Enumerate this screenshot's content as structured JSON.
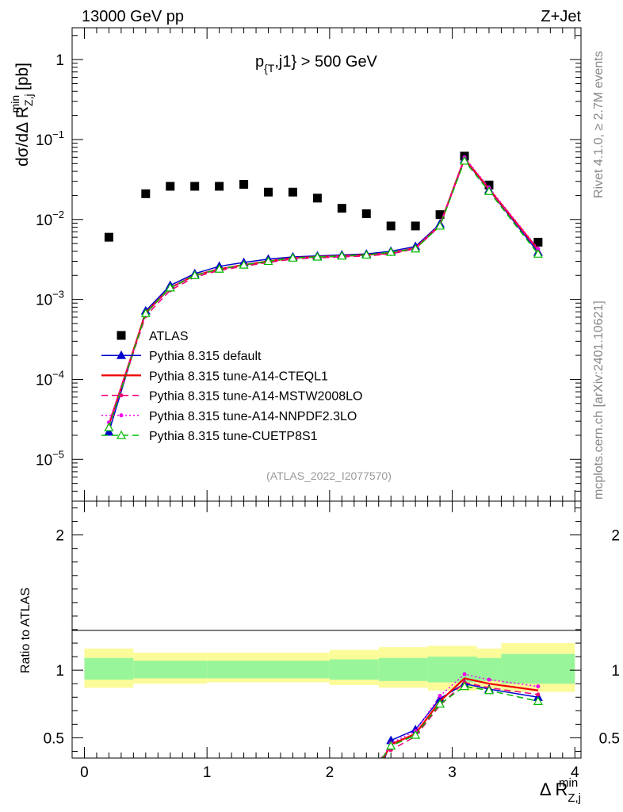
{
  "header": {
    "left": "13000 GeV pp",
    "right": "Z+Jet",
    "cut_label": "p_{T},j1} > 500 GeV",
    "cut_label_main": "p",
    "cut_label_sub": "{T",
    "cut_label_rest": ",j1} > 500 GeV",
    "analysis_id": "(ATLAS_2022_I2077570)"
  },
  "side": {
    "rivet": "Rivet 4.1.0, ≥ 2.7M events",
    "mcplots": "mcplots.cern.ch [arXiv:2401.10621]"
  },
  "colors": {
    "data": "#000000",
    "default": "#0000cc",
    "cteql1": "#ee0000",
    "mstw": "#ee0077",
    "nnpdf": "#ee00ee",
    "cuetp8s1": "#00bb00",
    "band_inner": "#99f599",
    "band_outer": "#fbfb9a"
  },
  "chart_data": [
    {
      "type": "scatter",
      "name": "main",
      "yscale": "log",
      "ylabel": "dσ/dΔ R_Z,j^min [pb]",
      "ylabel_parts": [
        "dσ/dΔ R",
        "Z,j",
        "min",
        " [pb]"
      ],
      "xlim": [
        -0.1,
        4.05
      ],
      "ylim": [
        3e-06,
        2.5
      ],
      "yticks": [
        {
          "v": 1,
          "base": "1",
          "exp": ""
        },
        {
          "v": 0.1,
          "base": "10",
          "exp": "−1"
        },
        {
          "v": 0.01,
          "base": "10",
          "exp": "−2"
        },
        {
          "v": 0.001,
          "base": "10",
          "exp": "−3"
        },
        {
          "v": 0.0001,
          "base": "10",
          "exp": "−4"
        },
        {
          "v": 1e-05,
          "base": "10",
          "exp": "−5"
        }
      ],
      "x": [
        0.2,
        0.5,
        0.7,
        0.9,
        1.1,
        1.3,
        1.5,
        1.7,
        1.9,
        2.1,
        2.3,
        2.5,
        2.7,
        2.9,
        3.1,
        3.3,
        3.7
      ],
      "series": [
        {
          "name": "ATLAS",
          "key": "data",
          "style": "data",
          "values": [
            0.006,
            0.021,
            0.026,
            0.026,
            0.026,
            0.0275,
            0.022,
            0.022,
            0.0185,
            0.0138,
            0.0118,
            0.0083,
            0.0083,
            0.0115,
            0.062,
            0.027,
            0.0052
          ]
        },
        {
          "name": "Pythia 8.315 default",
          "key": "default",
          "style": "solid",
          "marker": "tri-filled",
          "values": [
            2.2e-05,
            0.00072,
            0.0015,
            0.0021,
            0.0026,
            0.0029,
            0.0032,
            0.0034,
            0.0035,
            0.0036,
            0.0037,
            0.004,
            0.0046,
            0.0088,
            0.056,
            0.0235,
            0.0039
          ]
        },
        {
          "name": "Pythia 8.315 tune-A14-CTEQL1",
          "key": "cteql1",
          "style": "solid",
          "values": [
            2.7e-05,
            0.00068,
            0.0014,
            0.002,
            0.0024,
            0.0027,
            0.003,
            0.0033,
            0.0034,
            0.0035,
            0.0036,
            0.0038,
            0.0044,
            0.0085,
            0.058,
            0.024,
            0.0042
          ]
        },
        {
          "name": "Pythia 8.315 tune-A14-MSTW2008LO",
          "key": "mstw",
          "style": "dashed",
          "marker": "dot",
          "values": [
            2.6e-05,
            0.00062,
            0.0013,
            0.0019,
            0.0023,
            0.0026,
            0.0029,
            0.0032,
            0.0033,
            0.0034,
            0.0035,
            0.0037,
            0.0043,
            0.0083,
            0.056,
            0.0235,
            0.0041
          ]
        },
        {
          "name": "Pythia 8.315 tune-A14-NNPDF2.3LO",
          "key": "nnpdf",
          "style": "dotted",
          "marker": "dot",
          "values": [
            2.9e-05,
            0.00066,
            0.0014,
            0.002,
            0.0024,
            0.0027,
            0.003,
            0.0033,
            0.0034,
            0.0035,
            0.0036,
            0.0038,
            0.0044,
            0.0086,
            0.06,
            0.025,
            0.0043
          ]
        },
        {
          "name": "Pythia 8.315 tune-CUETP8S1",
          "key": "cuetp8s1",
          "style": "dashed",
          "marker": "tri-open",
          "values": [
            2.5e-05,
            0.00067,
            0.0014,
            0.002,
            0.0024,
            0.0027,
            0.003,
            0.0033,
            0.0034,
            0.0035,
            0.0036,
            0.0039,
            0.0043,
            0.0083,
            0.054,
            0.0225,
            0.0037
          ]
        }
      ]
    },
    {
      "type": "line",
      "name": "ratio",
      "ylabel": "Ratio to ATLAS",
      "xlabel": "Δ R_Z,j^min",
      "xlabel_parts": [
        "Δ R",
        "Z,j",
        "min"
      ],
      "xlim": [
        -0.1,
        4.05
      ],
      "ylim": [
        0.35,
        2.25
      ],
      "yticks": [
        "0.5",
        "1",
        "2"
      ],
      "xticks": [
        "0",
        "1",
        "2",
        "3",
        "4"
      ],
      "bands": {
        "edges": [
          0,
          0.4,
          1.0,
          2.0,
          2.4,
          2.8,
          3.2,
          3.4,
          4.0
        ],
        "outer_lo": [
          0.87,
          0.9,
          0.91,
          0.89,
          0.87,
          0.85,
          0.86,
          0.84
        ],
        "outer_hi": [
          1.16,
          1.13,
          1.13,
          1.15,
          1.17,
          1.18,
          1.16,
          1.2
        ],
        "inner_lo": [
          0.93,
          0.94,
          0.94,
          0.93,
          0.92,
          0.91,
          0.92,
          0.9
        ],
        "inner_hi": [
          1.09,
          1.07,
          1.07,
          1.08,
          1.09,
          1.1,
          1.09,
          1.12
        ]
      },
      "x": [
        2.5,
        2.7,
        2.9,
        3.1,
        3.3,
        3.7
      ],
      "series": [
        {
          "name": "Pythia 8.315 default",
          "key": "default",
          "style": "solid",
          "marker": "tri-filled",
          "values": [
            0.48,
            0.56,
            0.79,
            0.9,
            0.86,
            0.8
          ],
          "lead_x": 2.45,
          "lead_value": 0.35
        },
        {
          "name": "Pythia 8.315 tune-A14-CTEQL1",
          "key": "cteql1",
          "style": "solid",
          "values": [
            0.45,
            0.53,
            0.77,
            0.94,
            0.9,
            0.85
          ],
          "lead_x": 2.44,
          "lead_value": 0.35
        },
        {
          "name": "Pythia 8.315 tune-A14-MSTW2008LO",
          "key": "mstw",
          "style": "dashed",
          "marker": "dot",
          "values": [
            0.41,
            0.51,
            0.74,
            0.91,
            0.87,
            0.82
          ],
          "lead_x": 2.42,
          "lead_value": 0.35
        },
        {
          "name": "Pythia 8.315 tune-A14-NNPDF2.3LO",
          "key": "nnpdf",
          "style": "dotted",
          "marker": "dot",
          "values": [
            0.46,
            0.55,
            0.81,
            0.97,
            0.93,
            0.88
          ],
          "lead_x": 2.43,
          "lead_value": 0.35
        },
        {
          "name": "Pythia 8.315 tune-CUETP8S1",
          "key": "cuetp8s1",
          "style": "dashed",
          "marker": "tri-open",
          "values": [
            0.44,
            0.52,
            0.75,
            0.88,
            0.85,
            0.77
          ],
          "lead_x": 2.43,
          "lead_value": 0.35
        }
      ]
    }
  ]
}
